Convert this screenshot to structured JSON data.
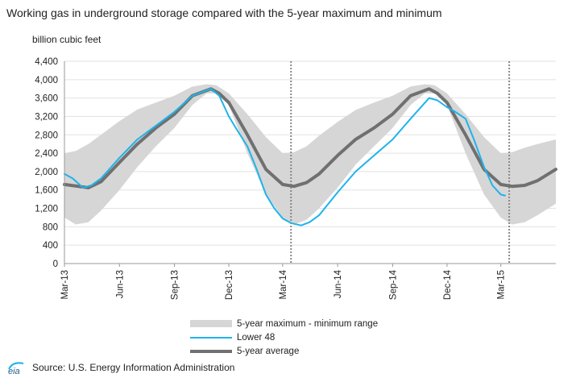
{
  "title": "Working gas in underground storage compared with the 5-year maximum and minimum",
  "units_label": "billion  cubic feet",
  "source": "Source:  U.S. Energy Information Administration",
  "logo_text": "eia",
  "colors": {
    "range": "#d6d6d6",
    "lower48": "#1fb3ea",
    "average": "#707070",
    "divider": "#888888"
  },
  "legend": [
    {
      "key": "range",
      "label": "5-year maximum - minimum range"
    },
    {
      "key": "lower48",
      "label": "Lower 48"
    },
    {
      "key": "average",
      "label": "5-year average"
    }
  ],
  "chart_data": {
    "type": "area",
    "title": "Working gas in underground storage compared with the 5-year maximum and minimum",
    "ylabel": "billion  cubic feet",
    "ylim": [
      0,
      4400
    ],
    "y_ticks": [
      0,
      400,
      800,
      1200,
      1600,
      2000,
      2400,
      2800,
      3200,
      3600,
      4000,
      4400
    ],
    "y_tick_labels": [
      "0",
      "400",
      "800",
      "1,200",
      "1,600",
      "2,000",
      "2,400",
      "2,800",
      "3,200",
      "3,600",
      "4,000",
      "4,400"
    ],
    "x_axis": {
      "type": "date",
      "min": "2013-03-01",
      "max": "2015-06-01"
    },
    "x_ticks": [
      {
        "date": "2013-03-01",
        "label": "Mar-13"
      },
      {
        "date": "2013-06-01",
        "label": "Jun-13"
      },
      {
        "date": "2013-09-01",
        "label": "Sep-13"
      },
      {
        "date": "2013-12-01",
        "label": "Dec-13"
      },
      {
        "date": "2014-03-01",
        "label": "Mar-14"
      },
      {
        "date": "2014-06-01",
        "label": "Jun-14"
      },
      {
        "date": "2014-09-01",
        "label": "Sep-14"
      },
      {
        "date": "2014-12-01",
        "label": "Dec-14"
      },
      {
        "date": "2015-03-01",
        "label": "Mar-15"
      }
    ],
    "vertical_markers": [
      "2014-03-15",
      "2015-03-15"
    ],
    "grid": true,
    "legend_position": "bottom",
    "range": {
      "name": "5-year maximum - minimum range",
      "x": [
        "2013-03-01",
        "2013-03-20",
        "2013-04-10",
        "2013-05-01",
        "2013-06-01",
        "2013-07-01",
        "2013-08-01",
        "2013-09-01",
        "2013-10-01",
        "2013-10-25",
        "2013-11-10",
        "2013-12-01",
        "2014-01-01",
        "2014-02-01",
        "2014-03-01",
        "2014-03-20",
        "2014-04-10",
        "2014-05-01",
        "2014-06-01",
        "2014-07-01",
        "2014-08-01",
        "2014-09-01",
        "2014-10-01",
        "2014-10-25",
        "2014-11-10",
        "2014-12-01",
        "2015-01-01",
        "2015-02-01",
        "2015-03-01",
        "2015-03-20",
        "2015-04-10",
        "2015-05-01",
        "2015-06-01"
      ],
      "max": [
        2400,
        2450,
        2600,
        2800,
        3100,
        3350,
        3500,
        3650,
        3850,
        3900,
        3880,
        3700,
        3250,
        2750,
        2400,
        2420,
        2550,
        2780,
        3080,
        3340,
        3500,
        3650,
        3850,
        3900,
        3880,
        3700,
        3250,
        2750,
        2400,
        2420,
        2520,
        2600,
        2700
      ],
      "min": [
        1000,
        850,
        900,
        1150,
        1600,
        2100,
        2550,
        2950,
        3450,
        3700,
        3700,
        3450,
        2400,
        1500,
        1000,
        850,
        950,
        1200,
        1650,
        2150,
        2550,
        2950,
        3450,
        3700,
        3700,
        3450,
        2400,
        1500,
        1000,
        850,
        900,
        1050,
        1300
      ]
    },
    "series": [
      {
        "name": "Lower 48",
        "x": [
          "2013-03-01",
          "2013-03-15",
          "2013-04-01",
          "2013-04-15",
          "2013-05-01",
          "2013-06-01",
          "2013-07-01",
          "2013-08-01",
          "2013-09-01",
          "2013-10-01",
          "2013-11-01",
          "2013-11-15",
          "2013-12-01",
          "2013-12-15",
          "2014-01-01",
          "2014-01-15",
          "2014-02-01",
          "2014-02-15",
          "2014-03-01",
          "2014-03-15",
          "2014-04-01",
          "2014-04-15",
          "2014-05-01",
          "2014-06-01",
          "2014-07-01",
          "2014-08-01",
          "2014-09-01",
          "2014-10-01",
          "2014-11-01",
          "2014-11-15",
          "2014-12-01",
          "2014-12-15",
          "2015-01-01",
          "2015-01-15",
          "2015-02-01",
          "2015-02-15",
          "2015-03-01",
          "2015-03-08"
        ],
        "values": [
          1950,
          1850,
          1650,
          1700,
          1850,
          2300,
          2700,
          3000,
          3300,
          3650,
          3800,
          3650,
          3200,
          2900,
          2550,
          2100,
          1500,
          1200,
          980,
          880,
          830,
          900,
          1050,
          1550,
          2000,
          2350,
          2700,
          3150,
          3600,
          3550,
          3400,
          3300,
          3150,
          2700,
          2100,
          1700,
          1500,
          1480
        ]
      },
      {
        "name": "5-year average",
        "x": [
          "2013-03-01",
          "2013-04-10",
          "2013-05-01",
          "2013-06-01",
          "2013-07-01",
          "2013-08-01",
          "2013-09-01",
          "2013-10-01",
          "2013-11-01",
          "2013-11-15",
          "2013-12-01",
          "2014-01-01",
          "2014-02-01",
          "2014-03-01",
          "2014-03-20",
          "2014-04-10",
          "2014-05-01",
          "2014-06-01",
          "2014-07-01",
          "2014-08-01",
          "2014-09-01",
          "2014-10-01",
          "2014-11-01",
          "2014-11-15",
          "2014-12-01",
          "2015-01-01",
          "2015-02-01",
          "2015-03-01",
          "2015-03-20",
          "2015-04-10",
          "2015-05-01",
          "2015-06-01"
        ],
        "values": [
          1720,
          1650,
          1780,
          2200,
          2600,
          2950,
          3250,
          3650,
          3800,
          3700,
          3500,
          2800,
          2050,
          1720,
          1680,
          1760,
          1950,
          2350,
          2700,
          2950,
          3250,
          3650,
          3800,
          3700,
          3500,
          2800,
          2050,
          1720,
          1680,
          1700,
          1800,
          2050
        ]
      }
    ]
  }
}
